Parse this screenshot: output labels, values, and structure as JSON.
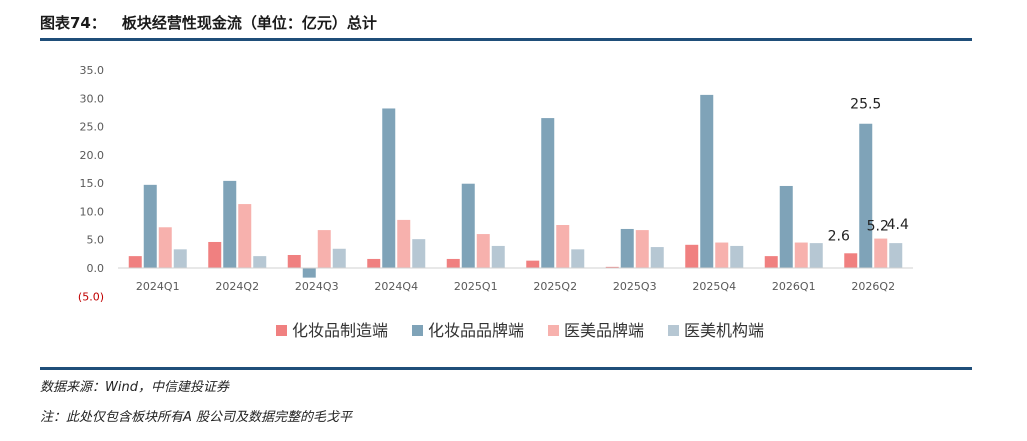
{
  "header": {
    "prefix": "图表74：",
    "title": "板块经营性现金流（单位：亿元）总计"
  },
  "footer": {
    "source": "数据来源：Wind，中信建投证券",
    "note": "注：此处仅包含板块所有A 股公司及数据完整的毛戈平"
  },
  "chart_data": {
    "type": "bar",
    "title": "板块经营性现金流（单位：亿元）总计",
    "categories": [
      "2024Q1",
      "2024Q2",
      "2024Q3",
      "2024Q4",
      "2025Q1",
      "2025Q2",
      "2025Q3",
      "2025Q4",
      "2026Q1",
      "2026Q2"
    ],
    "series": [
      {
        "name": "化妆品制造端",
        "color": "#f08080",
        "values": [
          2.1,
          4.6,
          2.3,
          1.6,
          1.6,
          1.3,
          0.2,
          4.1,
          2.1,
          2.6
        ]
      },
      {
        "name": "化妆品品牌端",
        "color": "#7fa3b8",
        "values": [
          14.7,
          15.4,
          -1.7,
          28.2,
          14.9,
          26.5,
          6.9,
          30.6,
          14.5,
          25.5
        ]
      },
      {
        "name": "医美品牌端",
        "color": "#f7b1ad",
        "values": [
          7.2,
          11.3,
          6.7,
          8.5,
          6.0,
          7.6,
          6.7,
          4.5,
          4.5,
          5.2
        ]
      },
      {
        "name": "医美机构端",
        "color": "#b6c7d3",
        "values": [
          3.3,
          2.1,
          3.4,
          5.1,
          3.9,
          3.3,
          3.7,
          3.9,
          4.4,
          4.4
        ]
      }
    ],
    "data_labels": [
      {
        "category": "2026Q2",
        "series": "化妆品制造端",
        "text": "2.6"
      },
      {
        "category": "2026Q2",
        "series": "化妆品品牌端",
        "text": "25.5"
      },
      {
        "category": "2026Q2",
        "series": "医美品牌端",
        "text": "5.2"
      },
      {
        "category": "2026Q2",
        "series": "医美机构端",
        "text": "4.4"
      }
    ],
    "yticks": [
      "35.0",
      "30.0",
      "25.0",
      "20.0",
      "15.0",
      "10.0",
      "5.0",
      "0.0",
      "(5.0)"
    ],
    "ytick_values": [
      35,
      30,
      25,
      20,
      15,
      10,
      5,
      0,
      -5
    ],
    "negative_tick_color": "#c00000",
    "ylim": [
      -5,
      35
    ],
    "grid": false,
    "legend_position": "bottom"
  }
}
